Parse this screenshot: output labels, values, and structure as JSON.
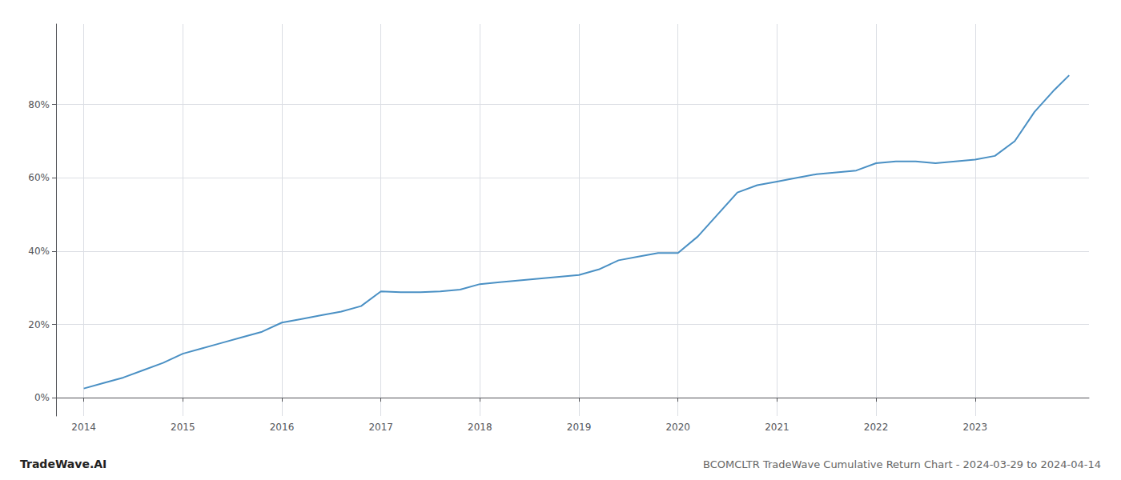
{
  "chart_data": {
    "type": "line",
    "title": "BCOMCLTR TradeWave Cumulative Return Chart - 2024-03-29 to 2024-04-14",
    "annotations": [
      "TradeWave.AI"
    ],
    "x": [
      2014.0,
      2014.2,
      2014.4,
      2014.6,
      2014.8,
      2015.0,
      2015.2,
      2015.4,
      2015.6,
      2015.8,
      2016.0,
      2016.2,
      2016.4,
      2016.6,
      2016.8,
      2017.0,
      2017.2,
      2017.4,
      2017.6,
      2017.8,
      2018.0,
      2018.2,
      2018.4,
      2018.6,
      2018.8,
      2019.0,
      2019.2,
      2019.4,
      2019.6,
      2019.8,
      2020.0,
      2020.2,
      2020.4,
      2020.6,
      2020.8,
      2021.0,
      2021.2,
      2021.4,
      2021.6,
      2021.8,
      2022.0,
      2022.2,
      2022.4,
      2022.6,
      2022.8,
      2023.0,
      2023.2,
      2023.4,
      2023.6,
      2023.8,
      2023.95
    ],
    "values": [
      2.5,
      4.0,
      5.5,
      7.5,
      9.5,
      12.0,
      13.5,
      15.0,
      16.5,
      18.0,
      20.5,
      21.5,
      22.5,
      23.5,
      25.0,
      29.0,
      28.8,
      28.8,
      29.0,
      29.5,
      31.0,
      31.5,
      32.0,
      32.5,
      33.0,
      33.5,
      35.0,
      37.5,
      38.5,
      39.5,
      39.5,
      44.0,
      50.0,
      56.0,
      58.0,
      59.0,
      60.0,
      61.0,
      61.5,
      62.0,
      64.0,
      64.5,
      64.5,
      64.0,
      64.5,
      65.0,
      66.0,
      70.0,
      78.0,
      84.0,
      88.0
    ],
    "color": "#4a90c4",
    "xlim": [
      2013.72,
      2024.15
    ],
    "ylim": [
      -5,
      102
    ],
    "xticks": [
      2014,
      2015,
      2016,
      2017,
      2018,
      2019,
      2020,
      2021,
      2022,
      2023
    ],
    "yticks": [
      {
        "value": 0,
        "label": "0%"
      },
      {
        "value": 20,
        "label": "20%"
      },
      {
        "value": 40,
        "label": "40%"
      },
      {
        "value": 60,
        "label": "60%"
      },
      {
        "value": 80,
        "label": "80%"
      }
    ],
    "grid": true
  }
}
